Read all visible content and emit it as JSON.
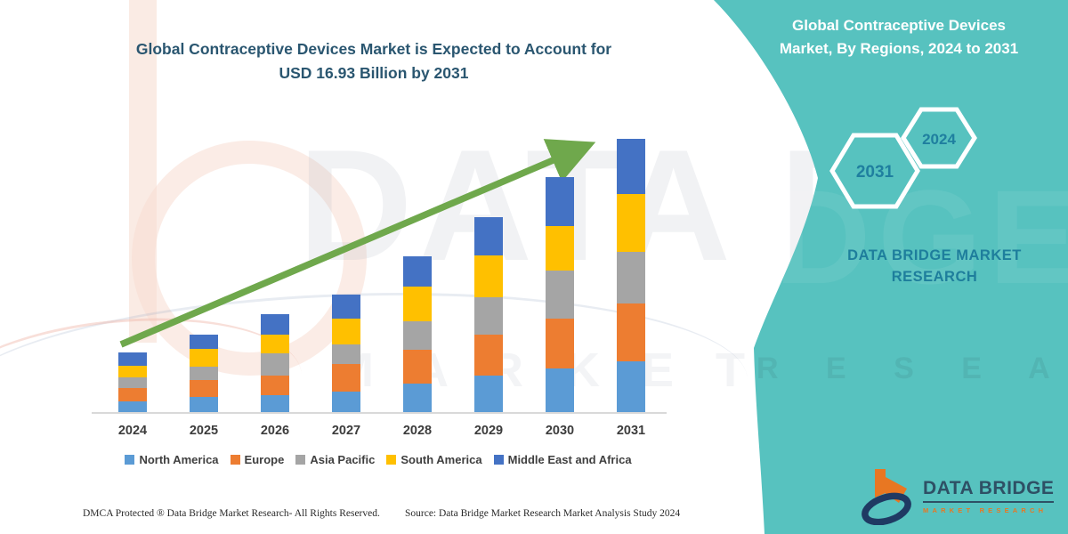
{
  "title": {
    "line1": "Global Contraceptive Devices Market is Expected to Account for",
    "line2": "USD 16.93 Billion by 2031"
  },
  "side_panel": {
    "heading_line1": "Global Contraceptive Devices",
    "heading_line2": "Market, By Regions, 2024 to 2031",
    "hexagons": [
      {
        "label": "2031"
      },
      {
        "label": "2024"
      }
    ],
    "brand_line1": "DATA BRIDGE MARKET",
    "brand_line2": "RESEARCH"
  },
  "logo": {
    "name": "DATA BRIDGE",
    "subtitle": "MARKET RESEARCH"
  },
  "footer": {
    "dmca": "DMCA Protected ® Data Bridge Market Research-  All Rights Reserved.",
    "source": "Source: Data Bridge Market Research  Market Analysis Study 2024"
  },
  "colors": {
    "teal_background": "#57C2BF",
    "title_text": "#2A5670",
    "panel_brand_text": "#1E7E9C",
    "hexagon_year_text": "#1F7F9F",
    "trend_arrow_green": "#6FA84C",
    "axis_line": "#D9D9D9",
    "logo_navy": "#1F3A63",
    "logo_orange": "#E87722"
  },
  "chart_data": {
    "type": "bar",
    "stacked": true,
    "title": "Global Contraceptive Devices Market is Expected to Account for USD 16.93 Billion by 2031",
    "unit": "USD Billion",
    "categories": [
      "2024",
      "2025",
      "2026",
      "2027",
      "2028",
      "2029",
      "2030",
      "2031"
    ],
    "series": [
      {
        "name": "North America",
        "color": "#5B9BD5",
        "values": [
          0.71,
          0.99,
          1.1,
          1.32,
          1.81,
          2.31,
          2.75,
          3.19
        ]
      },
      {
        "name": "Europe",
        "color": "#ED7D31",
        "values": [
          0.82,
          1.04,
          1.21,
          1.7,
          2.09,
          2.53,
          3.08,
          3.57
        ]
      },
      {
        "name": "Asia Pacific",
        "color": "#A5A5A5",
        "values": [
          0.66,
          0.82,
          1.37,
          1.21,
          1.76,
          2.31,
          2.97,
          3.19
        ]
      },
      {
        "name": "South America",
        "color": "#FFC000",
        "values": [
          0.71,
          1.1,
          1.15,
          1.59,
          2.14,
          2.58,
          2.75,
          3.57
        ]
      },
      {
        "name": "Middle East and Africa",
        "color": "#4472C4",
        "values": [
          0.82,
          0.88,
          1.26,
          1.48,
          1.87,
          2.36,
          3.02,
          3.41
        ]
      }
    ],
    "estimated_totals": [
      3.72,
      4.83,
      6.09,
      7.3,
      9.67,
      12.09,
      14.57,
      16.93
    ],
    "highlight_value_2031": "USD 16.93 Billion",
    "legend_position": "bottom",
    "gridlines": false,
    "annotations": [
      "upward-trend-arrow"
    ],
    "ylim": [
      0,
      17.5
    ]
  }
}
